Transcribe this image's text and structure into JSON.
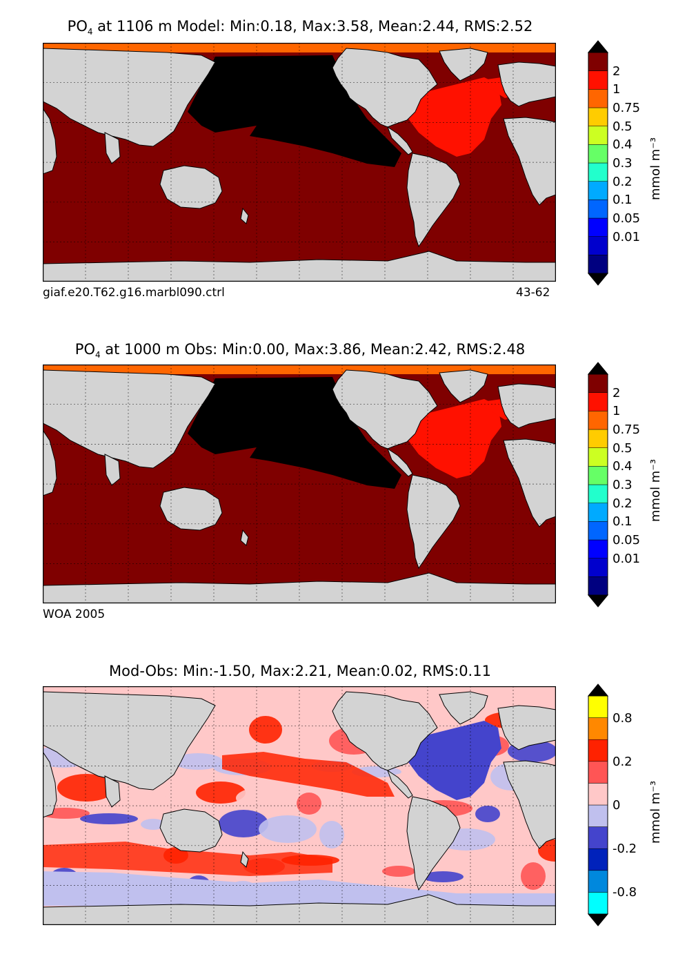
{
  "panels": [
    {
      "title_prefix": "PO",
      "title_sub": "4",
      "title_rest": " at 1106 m Model: Min:0.18, Max:3.58, Mean:2.44, RMS:2.52",
      "caption_left": "giaf.e20.T62.g16.marbl090.ctrl",
      "caption_right": "43-62",
      "ocean_color": "#7f0000",
      "colorbar_colors": [
        "#000080",
        "#0000cd",
        "#0000ff",
        "#0066ff",
        "#00aaff",
        "#22ffcc",
        "#66ff66",
        "#ccff22",
        "#ffcc00",
        "#ff6600",
        "#ff1100",
        "#7f0000"
      ],
      "colorbar_labels": [
        "2",
        "1",
        "0.75",
        "0.5",
        "0.4",
        "0.3",
        "0.2",
        "0.1",
        "0.05",
        "0.01"
      ],
      "unit": "mmol m⁻³"
    },
    {
      "title_prefix": "PO",
      "title_sub": "4",
      "title_rest": " at 1000 m Obs: Min:0.00, Max:3.86, Mean:2.42, RMS:2.48",
      "caption_left": "WOA 2005",
      "caption_right": "",
      "ocean_color": "#7f0000",
      "colorbar_colors": [
        "#000080",
        "#0000cd",
        "#0000ff",
        "#0066ff",
        "#00aaff",
        "#22ffcc",
        "#66ff66",
        "#ccff22",
        "#ffcc00",
        "#ff6600",
        "#ff1100",
        "#7f0000"
      ],
      "colorbar_labels": [
        "2",
        "1",
        "0.75",
        "0.5",
        "0.4",
        "0.3",
        "0.2",
        "0.1",
        "0.05",
        "0.01"
      ],
      "unit": "mmol m⁻³"
    },
    {
      "title_prefix": "Mod-Obs: Min:-1.50, Max:2.21, Mean:0.02, RMS:0.11",
      "title_sub": "",
      "title_rest": "",
      "caption_left": "",
      "caption_right": "",
      "ocean_color": "#ffc8c8",
      "colorbar_colors": [
        "#00ffff",
        "#0088dd",
        "#0022bb",
        "#4444cc",
        "#c0c0ee",
        "#ffc8c8",
        "#ff5555",
        "#ff2200",
        "#ff8800",
        "#ffff00"
      ],
      "colorbar_labels": [
        "0.8",
        "0.2",
        "0",
        "-0.2",
        "-0.8"
      ],
      "unit": "mmol m⁻³"
    }
  ]
}
